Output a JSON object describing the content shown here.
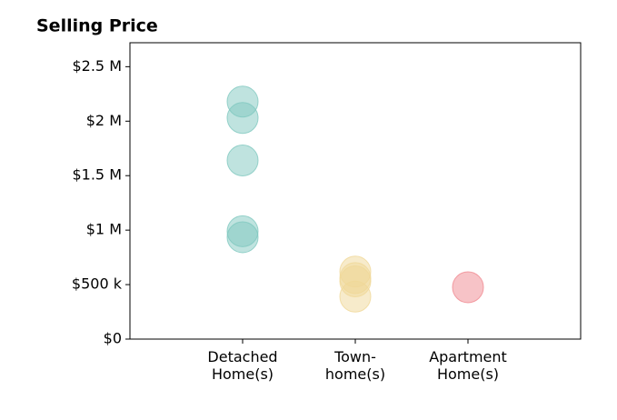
{
  "chart_data": {
    "type": "strip",
    "title": "Selling Price",
    "categories": [
      "Detached\nHome(s)",
      "Town-\nhome(s)",
      "Apartment\nHome(s)"
    ],
    "values": [
      [
        2180000,
        2030000,
        1640000,
        990000,
        935000
      ],
      [
        620000,
        560000,
        530000,
        390000
      ],
      [
        476000
      ]
    ],
    "colors": [
      "#7fc8bf",
      "#f0d898",
      "#f08890"
    ],
    "ylim": [
      0,
      2720000
    ],
    "yticks": [
      {
        "value": 0,
        "label": "$0"
      },
      {
        "value": 500000,
        "label": "$500 k"
      },
      {
        "value": 1000000,
        "label": "$1 M"
      },
      {
        "value": 1500000,
        "label": "$1.5 M"
      },
      {
        "value": 2000000,
        "label": "$2 M"
      },
      {
        "value": 2500000,
        "label": "$2.5 M"
      }
    ]
  }
}
